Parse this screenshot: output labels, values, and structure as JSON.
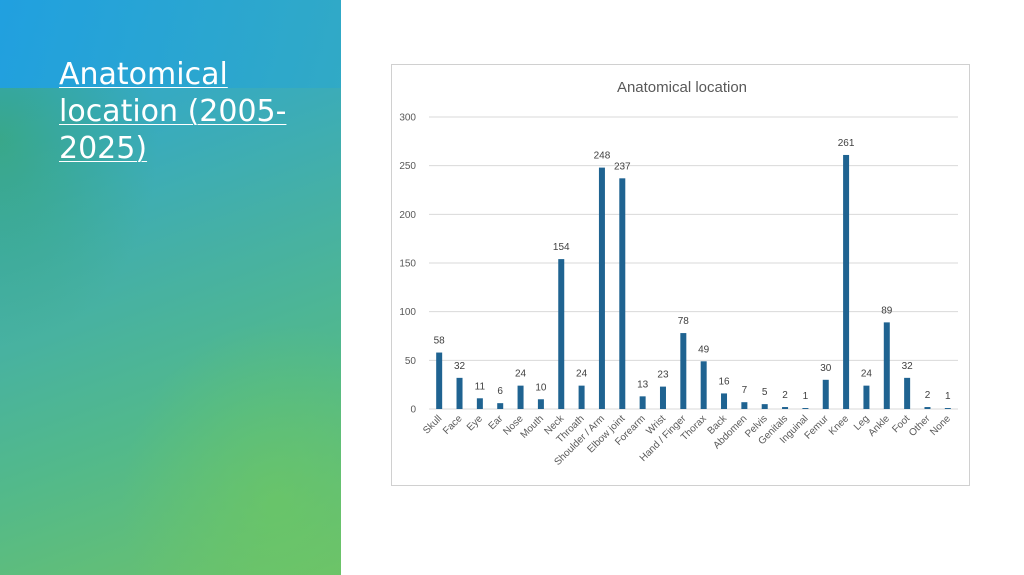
{
  "slide": {
    "title": "Anatomical location (2005-2025)"
  },
  "colors": {
    "bar": "#1f6391",
    "gridline": "#d9d9d9",
    "panel_top": "#2aa6de",
    "panel_bottom": "#6cc26b"
  },
  "chart_data": {
    "type": "bar",
    "title": "Anatomical location",
    "xlabel": "",
    "ylabel": "",
    "ylim": [
      0,
      300
    ],
    "yticks": [
      0,
      50,
      100,
      150,
      200,
      250,
      300
    ],
    "grid": true,
    "legend": "none",
    "categories": [
      "Skull",
      "Face",
      "Eye",
      "Ear",
      "Nose",
      "Mouth",
      "Neck",
      "Throath",
      "Shoulder / Arm",
      "Elbow joint",
      "Forearm",
      "Wrist",
      "Hand / Finger",
      "Thorax",
      "Back",
      "Abdomen",
      "Pelvis",
      "Genitals",
      "Inguinal",
      "Femur",
      "Knee",
      "Leg",
      "Ankle",
      "Foot",
      "Other",
      "None"
    ],
    "values": [
      58,
      32,
      11,
      6,
      24,
      10,
      154,
      24,
      248,
      237,
      13,
      23,
      78,
      49,
      16,
      7,
      5,
      2,
      1,
      30,
      261,
      24,
      89,
      32,
      2,
      1
    ]
  }
}
